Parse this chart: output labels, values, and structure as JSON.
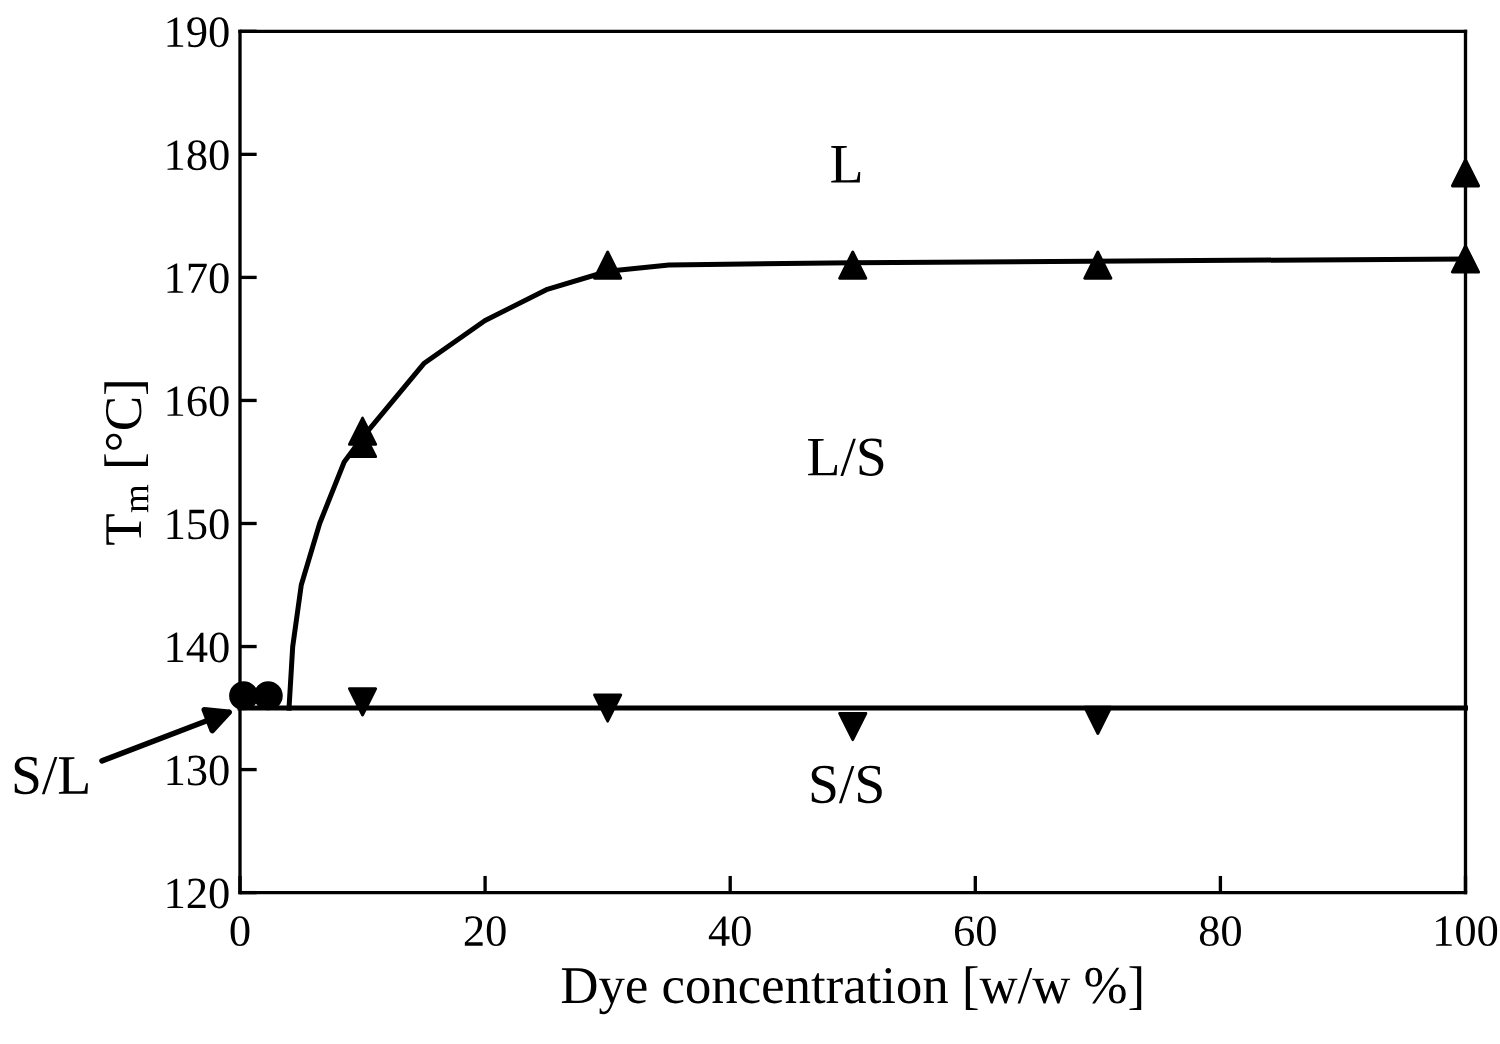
{
  "chart_data": {
    "type": "scatter",
    "xlabel": "Dye concentration [w/w %]",
    "ylabel": "T$_{m}$ [°C]",
    "xlim": [
      0,
      100
    ],
    "ylim": [
      120,
      190
    ],
    "xticks": [
      0,
      20,
      40,
      60,
      80,
      100
    ],
    "yticks": [
      120,
      130,
      140,
      150,
      160,
      170,
      180,
      190
    ],
    "grid": false,
    "legend": false,
    "series": [
      {
        "type": "line",
        "color": "#000000",
        "marker": "none",
        "line_style": "solid",
        "x": [
          4,
          4.3,
          5,
          6.5,
          8.5,
          10,
          15,
          20,
          25,
          30,
          35,
          50,
          100
        ],
        "values": [
          135,
          140,
          145,
          150,
          155,
          157,
          163,
          166.5,
          169,
          170.5,
          171,
          171.2,
          171.5
        ]
      },
      {
        "type": "line",
        "color": "#000000",
        "marker": "none",
        "line_style": "solid",
        "x": [
          0,
          100
        ],
        "values": [
          135,
          135
        ]
      },
      {
        "color": "#000000",
        "marker": "triangle",
        "x": [
          10,
          10,
          30,
          50,
          70,
          100,
          100
        ],
        "values": [
          157.5,
          156.5,
          171,
          171,
          171,
          171.5,
          178.5
        ]
      },
      {
        "color": "#000000",
        "marker": "triangle_down",
        "x": [
          10,
          30,
          50,
          70
        ],
        "values": [
          135.5,
          135,
          133.5,
          134
        ]
      },
      {
        "color": "#000000",
        "marker": "circle",
        "x": [
          0.3,
          2.3
        ],
        "values": [
          136,
          136
        ]
      }
    ],
    "annotations": [
      "L",
      "L/S",
      "S/S",
      {
        "text": "S/L",
        "x": 0,
        "y": 135
      }
    ]
  }
}
